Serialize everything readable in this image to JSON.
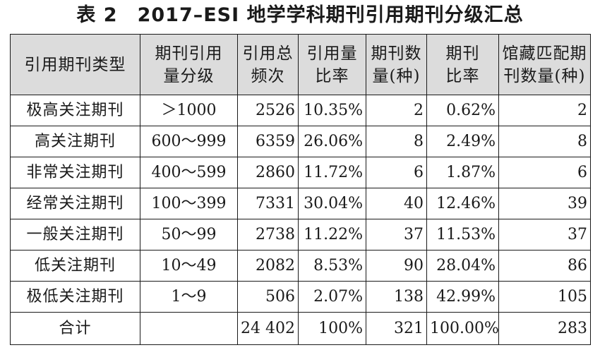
{
  "title": "表 2　2017–ESI 地学学科期刊引用期刊分级汇总",
  "headers": [
    [
      "引用期刊类型"
    ],
    [
      "期刊引用",
      "量分级"
    ],
    [
      "引用总",
      "频次"
    ],
    [
      "引用量",
      "比率"
    ],
    [
      "期刊数",
      "量(种)"
    ],
    [
      "期刊",
      "比率"
    ],
    [
      "馆藏匹配期",
      "刊数量(种)"
    ]
  ],
  "rows": [
    {
      "type": "极高关注期刊",
      "level": "＞1000",
      "citations": "2526",
      "cite_ratio": "10.35%",
      "journals": "2",
      "journal_ratio": "0.62%",
      "holdings": "2"
    },
    {
      "type": "高关注期刊",
      "level": "600～999",
      "citations": "6359",
      "cite_ratio": "26.06%",
      "journals": "8",
      "journal_ratio": "2.49%",
      "holdings": "8"
    },
    {
      "type": "非常关注期刊",
      "level": "400～599",
      "citations": "2860",
      "cite_ratio": "11.72%",
      "journals": "6",
      "journal_ratio": "1.87%",
      "holdings": "6"
    },
    {
      "type": "经常关注期刊",
      "level": "100～399",
      "citations": "7331",
      "cite_ratio": "30.04%",
      "journals": "40",
      "journal_ratio": "12.46%",
      "holdings": "39"
    },
    {
      "type": "一般关注期刊",
      "level": "50～99",
      "citations": "2738",
      "cite_ratio": "11.22%",
      "journals": "37",
      "journal_ratio": "11.53%",
      "holdings": "37"
    },
    {
      "type": "低关注期刊",
      "level": "10～49",
      "citations": "2082",
      "cite_ratio": "8.53%",
      "journals": "90",
      "journal_ratio": "28.04%",
      "holdings": "86"
    },
    {
      "type": "极低关注期刊",
      "level": "1～9",
      "citations": "506",
      "cite_ratio": "2.07%",
      "journals": "138",
      "journal_ratio": "42.99%",
      "holdings": "105"
    }
  ],
  "total": {
    "type": "合计",
    "level": "",
    "citations": "24 402",
    "cite_ratio": "100%",
    "journals": "321",
    "journal_ratio": "100.00%",
    "holdings": "283"
  }
}
